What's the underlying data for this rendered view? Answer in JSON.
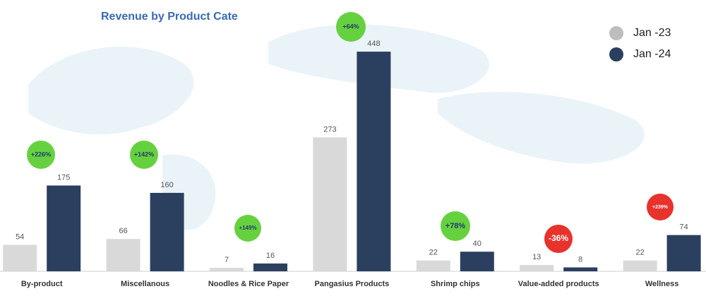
{
  "chart_data": {
    "type": "bar",
    "title": "Revenue by Product Cate",
    "categories": [
      "By-product",
      "Miscellanous",
      "Noodles & Rice Paper",
      "Pangasius Products",
      "Shrimp chips",
      "Value-added products",
      "Wellness"
    ],
    "series": [
      {
        "name": "Jan -23",
        "color": "#d9d9d9",
        "values": [
          54,
          66,
          7,
          273,
          22,
          13,
          22
        ]
      },
      {
        "name": "Jan -24",
        "color": "#2b3f5f",
        "values": [
          175,
          160,
          16,
          448,
          40,
          8,
          74
        ]
      }
    ],
    "annotations": [
      {
        "text": "+226%",
        "color": "#66d13f"
      },
      {
        "text": "+142%",
        "color": "#66d13f"
      },
      {
        "text": "+149%",
        "color": "#66d13f"
      },
      {
        "text": "+64%",
        "color": "#66d13f"
      },
      {
        "text": "+78%",
        "color": "#66d13f"
      },
      {
        "text": "-36%",
        "color": "#e8322c"
      },
      {
        "text": "+239%",
        "color": "#e8322c"
      }
    ],
    "ylim": [
      0,
      500
    ],
    "legend": "top-right"
  }
}
